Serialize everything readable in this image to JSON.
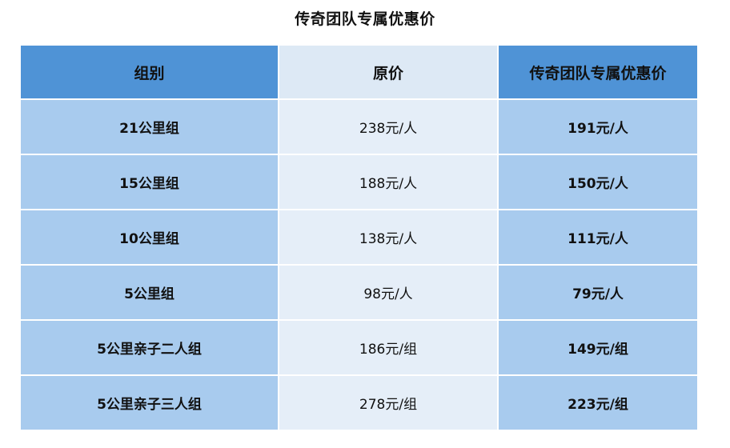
{
  "page": {
    "title": "传奇团队专属优惠价"
  },
  "table": {
    "headers": [
      "组别",
      "原价",
      "传奇团队专属优惠价"
    ],
    "rows": [
      {
        "group": "21公里组",
        "original": "238元/人",
        "discount": "191元/人"
      },
      {
        "group": "15公里组",
        "original": "188元/人",
        "discount": "150元/人"
      },
      {
        "group": "10公里组",
        "original": "138元/人",
        "discount": "111元/人"
      },
      {
        "group": "5公里组",
        "original": "98元/人",
        "discount": "79元/人"
      },
      {
        "group": "5公里亲子二人组",
        "original": "186元/组",
        "discount": "149元/组"
      },
      {
        "group": "5公里亲子三人组",
        "original": "278元/组",
        "discount": "223元/组"
      }
    ]
  },
  "colors": {
    "header_blue": "#4f93d6",
    "header_light": "#dde9f5",
    "cell_blue": "#a8cbee",
    "cell_light": "#e5eef8"
  }
}
